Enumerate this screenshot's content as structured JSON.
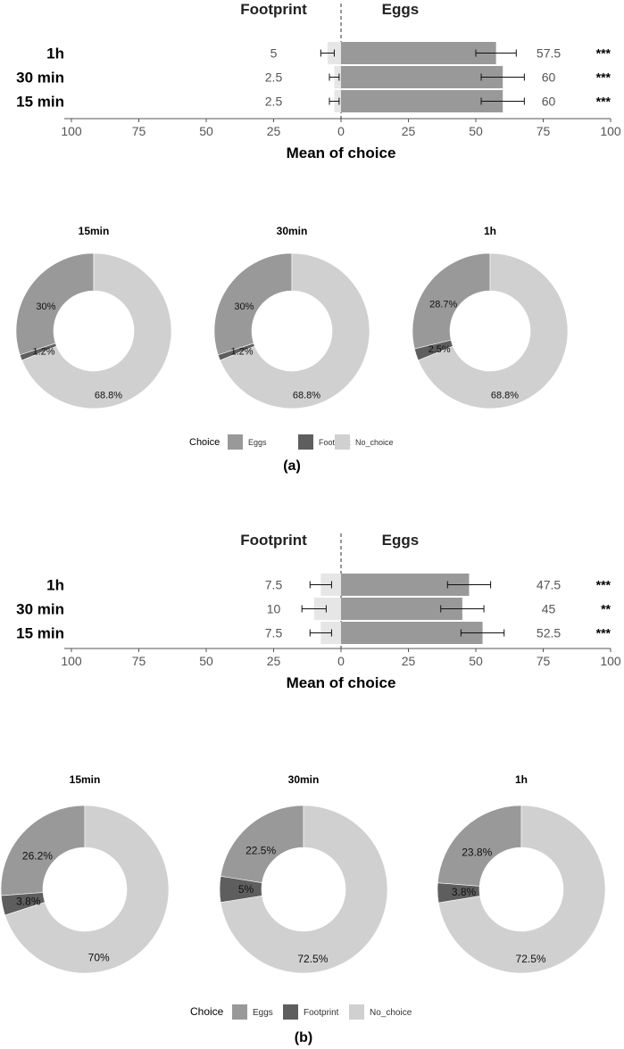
{
  "chart_data": [
    {
      "type": "bar",
      "panel": "a",
      "side_labels": [
        "Footprint",
        "Eggs"
      ],
      "xlabel": "Mean of choice",
      "xlim": [
        -100,
        100
      ],
      "x_ticks": [
        "100",
        "75",
        "50",
        "25",
        "0",
        "25",
        "50",
        "75",
        "100"
      ],
      "categories": [
        "1h",
        "30 min",
        "15 min"
      ],
      "series": [
        {
          "name": "Footprint",
          "values": [
            5,
            2.5,
            2.5
          ],
          "labels": [
            "5",
            "2.5",
            "2.5"
          ]
        },
        {
          "name": "Eggs",
          "values": [
            57.5,
            60,
            60
          ],
          "labels": [
            "57.5",
            "60",
            "60"
          ]
        }
      ],
      "footprint_error": [
        2.5,
        1.8,
        1.8
      ],
      "eggs_error": [
        7.5,
        8,
        8
      ],
      "significance": [
        "***",
        "***",
        "***"
      ]
    },
    {
      "type": "pie",
      "panel": "a",
      "charts": [
        {
          "title": "15min",
          "values": [
            30,
            1.2,
            68.8
          ],
          "labels": [
            "30%",
            "1.2%",
            "68.8%"
          ]
        },
        {
          "title": "30min",
          "values": [
            30,
            1.2,
            68.8
          ],
          "labels": [
            "30%",
            "1.2%",
            "68.8%"
          ]
        },
        {
          "title": "1h",
          "values": [
            28.7,
            2.5,
            68.8
          ],
          "labels": [
            "28.7%",
            "2.5%",
            "68.8%"
          ]
        }
      ],
      "legend_title": "Choice",
      "legend": [
        "Eggs",
        "Footprint",
        "No_choice"
      ],
      "colors": [
        "#999999",
        "#5e5e5e",
        "#d0d0d0"
      ],
      "caption": "(a)"
    },
    {
      "type": "bar",
      "panel": "b",
      "side_labels": [
        "Footprint",
        "Eggs"
      ],
      "xlabel": "Mean of choice",
      "xlim": [
        -100,
        100
      ],
      "x_ticks": [
        "100",
        "75",
        "50",
        "25",
        "0",
        "25",
        "50",
        "75",
        "100"
      ],
      "categories": [
        "1h",
        "30 min",
        "15 min"
      ],
      "series": [
        {
          "name": "Footprint",
          "values": [
            7.5,
            10,
            7.5
          ],
          "labels": [
            "7.5",
            "10",
            "7.5"
          ]
        },
        {
          "name": "Eggs",
          "values": [
            47.5,
            45,
            52.5
          ],
          "labels": [
            "47.5",
            "45",
            "52.5"
          ]
        }
      ],
      "footprint_error": [
        4,
        4.5,
        4
      ],
      "eggs_error": [
        8,
        8,
        8
      ],
      "significance": [
        "***",
        "**",
        "***"
      ]
    },
    {
      "type": "pie",
      "panel": "b",
      "charts": [
        {
          "title": "15min",
          "values": [
            26.2,
            3.8,
            70
          ],
          "labels": [
            "26.2%",
            "3.8%",
            "70%"
          ]
        },
        {
          "title": "30min",
          "values": [
            22.5,
            5,
            72.5
          ],
          "labels": [
            "22.5%",
            "5%",
            "72.5%"
          ]
        },
        {
          "title": "1h",
          "values": [
            23.8,
            3.8,
            72.5
          ],
          "labels": [
            "23.8%",
            "3.8%",
            "72.5%"
          ]
        }
      ],
      "legend_title": "Choice",
      "legend": [
        "Eggs",
        "Footprint",
        "No_choice"
      ],
      "colors": [
        "#999999",
        "#5e5e5e",
        "#d0d0d0"
      ],
      "caption": "(b)"
    }
  ]
}
